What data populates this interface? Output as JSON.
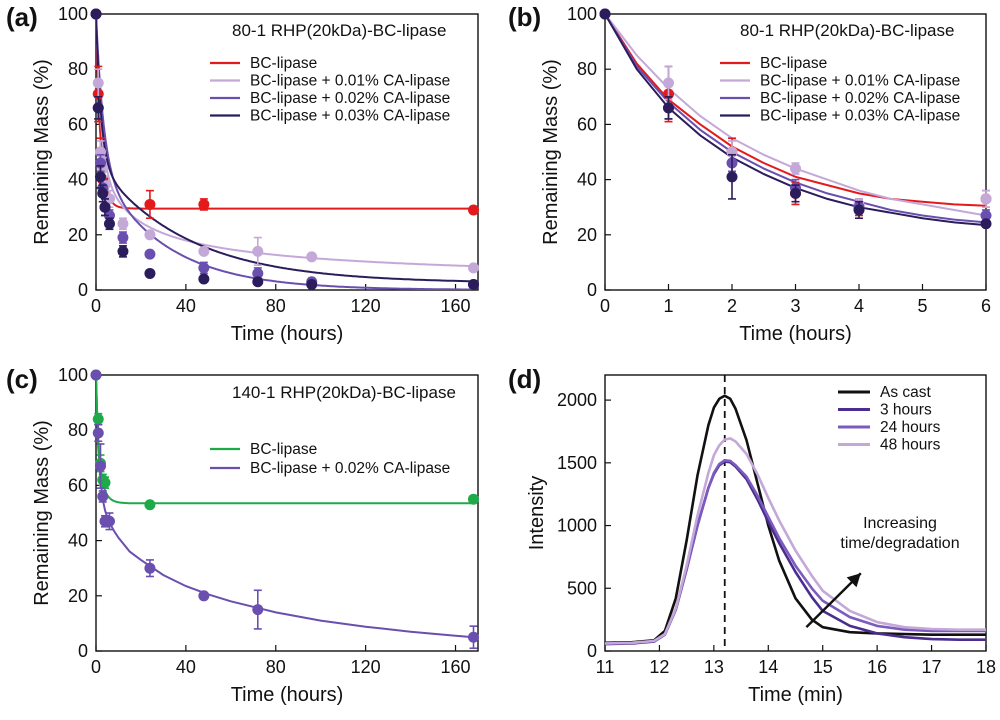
{
  "chart_data": [
    {
      "panel": "(a)",
      "type": "scatter",
      "title": "80-1 RHP(20kDa)-BC-lipase",
      "xlabel": "Time (hours)",
      "ylabel": "Remaining Mass (%)",
      "xlim": [
        0,
        170
      ],
      "ylim": [
        0,
        100
      ],
      "xticks": [
        0,
        40,
        80,
        120,
        160
      ],
      "yticks": [
        0,
        20,
        40,
        60,
        80,
        100
      ],
      "legend_position": "upper-right",
      "series": [
        {
          "name": "BC-lipase",
          "color": "#e31a1c",
          "x": [
            0,
            1,
            2,
            3,
            4,
            24,
            48,
            168
          ],
          "y": [
            100,
            71,
            50,
            40,
            35,
            31,
            31,
            29
          ],
          "err": [
            0,
            10,
            5,
            4,
            3,
            5,
            2,
            1
          ],
          "fit_k": 0.6,
          "fit_plateau": 29.5
        },
        {
          "name": "BC-lipase + 0.01% CA-lipase",
          "color": "#c4a8d8",
          "x": [
            0,
            1,
            2,
            3,
            4,
            6,
            12,
            24,
            48,
            72,
            96,
            168
          ],
          "y": [
            100,
            75,
            50,
            44,
            38,
            33,
            24,
            20,
            14,
            14,
            12,
            8
          ],
          "err": [
            0,
            5,
            4,
            4,
            3,
            3,
            2,
            1,
            1,
            5,
            1,
            1
          ],
          "fit_k": 0.45,
          "fit_plateau": 0
        },
        {
          "name": "BC-lipase + 0.02% CA-lipase",
          "color": "#6a4fb0",
          "x": [
            0,
            1,
            2,
            3,
            4,
            6,
            12,
            24,
            48,
            72,
            96,
            168
          ],
          "y": [
            100,
            66,
            46,
            37,
            30,
            27,
            19,
            13,
            8,
            6,
            3,
            2
          ],
          "err": [
            0,
            4,
            3,
            3,
            3,
            2,
            2,
            1,
            2,
            2,
            1,
            1
          ],
          "fit_k": 0.3,
          "fit_plateau": 0
        },
        {
          "name": "BC-lipase + 0.03% CA-lipase",
          "color": "#2b1d5c",
          "x": [
            0,
            1,
            2,
            3,
            4,
            6,
            12,
            24,
            48,
            72,
            96,
            168
          ],
          "y": [
            100,
            66,
            41,
            35,
            30,
            24,
            14,
            6,
            4,
            3,
            2,
            2
          ],
          "err": [
            0,
            4,
            4,
            3,
            3,
            2,
            2,
            1,
            1,
            1,
            1,
            1
          ],
          "fit_k": 0.45,
          "fit_plateau": 2.5
        }
      ]
    },
    {
      "panel": "(b)",
      "type": "scatter",
      "title": "80-1 RHP(20kDa)-BC-lipase",
      "xlabel": "Time (hours)",
      "ylabel": "Remaining Mass (%)",
      "xlim": [
        0,
        6
      ],
      "ylim": [
        0,
        100
      ],
      "xticks": [
        0,
        1,
        2,
        3,
        4,
        5,
        6
      ],
      "yticks": [
        0,
        20,
        40,
        60,
        80,
        100
      ],
      "legend_position": "upper-right",
      "series": [
        {
          "name": "BC-lipase",
          "color": "#e31a1c",
          "x": [
            0,
            1,
            2,
            3,
            4,
            6
          ],
          "y": [
            100,
            71,
            50,
            35,
            30,
            33
          ],
          "err": [
            0,
            10,
            5,
            4,
            3,
            3
          ]
        },
        {
          "name": "BC-lipase + 0.01% CA-lipase",
          "color": "#c4a8d8",
          "x": [
            0,
            1,
            2,
            3,
            4,
            6
          ],
          "y": [
            100,
            75,
            50,
            44,
            31,
            33
          ],
          "err": [
            0,
            6,
            4,
            2,
            2,
            3
          ]
        },
        {
          "name": "BC-lipase + 0.02% CA-lipase",
          "color": "#6a4fb0",
          "x": [
            0,
            1,
            2,
            3,
            4,
            6
          ],
          "y": [
            100,
            66,
            46,
            37,
            30,
            27
          ],
          "err": [
            0,
            4,
            3,
            3,
            2,
            2
          ]
        },
        {
          "name": "BC-lipase + 0.03% CA-lipase",
          "color": "#2b1d5c",
          "x": [
            0,
            1,
            2,
            3,
            4,
            6
          ],
          "y": [
            100,
            66,
            41,
            35,
            29,
            24
          ],
          "err": [
            0,
            4,
            8,
            3,
            3,
            1
          ]
        }
      ],
      "fit_curves": [
        {
          "color": "#e31a1c",
          "x": [
            0,
            0.5,
            1,
            1.5,
            2,
            2.5,
            3,
            3.5,
            4,
            4.5,
            5,
            5.5,
            6
          ],
          "y": [
            100,
            82,
            69,
            60,
            52,
            46,
            41,
            38,
            35,
            33,
            32,
            31,
            30.5
          ]
        },
        {
          "color": "#c4a8d8",
          "x": [
            0,
            0.5,
            1,
            1.5,
            2,
            2.5,
            3,
            3.5,
            4,
            4.5,
            5,
            5.5,
            6
          ],
          "y": [
            100,
            85,
            73,
            63,
            55,
            49,
            44,
            40,
            36,
            33,
            31,
            29,
            27
          ]
        },
        {
          "color": "#6a4fb0",
          "x": [
            0,
            0.5,
            1,
            1.5,
            2,
            2.5,
            3,
            3.5,
            4,
            4.5,
            5,
            5.5,
            6
          ],
          "y": [
            100,
            81,
            68,
            58,
            50,
            44,
            39,
            35,
            32,
            29,
            27,
            25.5,
            24.5
          ]
        },
        {
          "color": "#2b1d5c",
          "x": [
            0,
            0.5,
            1,
            1.5,
            2,
            2.5,
            3,
            3.5,
            4,
            4.5,
            5,
            5.5,
            6
          ],
          "y": [
            100,
            80,
            66,
            56,
            48,
            42,
            37,
            33,
            30,
            28,
            26,
            24.5,
            23.5
          ]
        }
      ]
    },
    {
      "panel": "(c)",
      "type": "scatter",
      "title": "140-1 RHP(20kDa)-BC-lipase",
      "xlabel": "Time (hours)",
      "ylabel": "Remaining Mass (%)",
      "xlim": [
        0,
        170
      ],
      "ylim": [
        0,
        100
      ],
      "xticks": [
        0,
        40,
        80,
        120,
        160
      ],
      "yticks": [
        0,
        20,
        40,
        60,
        80,
        100
      ],
      "legend_position": "upper-right",
      "series": [
        {
          "name": "BC-lipase",
          "color": "#1faa4a",
          "x": [
            0,
            1,
            2,
            3,
            4,
            24,
            168
          ],
          "y": [
            100,
            84,
            68,
            62,
            61,
            53,
            55
          ],
          "err": [
            0,
            2,
            3,
            2,
            2,
            1,
            1
          ],
          "fit_k": 1.0,
          "fit_plateau": 53.5
        },
        {
          "name": "BC-lipase + 0.02% CA-lipase",
          "color": "#6a4fb0",
          "x": [
            0,
            1,
            2,
            3,
            4,
            6,
            24,
            48,
            72,
            168
          ],
          "y": [
            100,
            79,
            67,
            56,
            47,
            47,
            30,
            20,
            15,
            5
          ],
          "err": [
            0,
            3,
            8,
            2,
            2,
            3,
            3,
            1,
            7,
            4
          ]
        }
      ],
      "fit_curves": [
        {
          "color": "#6a4fb0",
          "x": [
            0,
            1,
            2,
            3,
            4,
            5,
            6,
            8,
            10,
            15,
            20,
            30,
            40,
            50,
            60,
            80,
            100,
            120,
            140,
            160,
            168
          ],
          "y": [
            100,
            74,
            62,
            55,
            51,
            48.5,
            46.5,
            43.5,
            41,
            36,
            33,
            27.5,
            23.5,
            20.5,
            18,
            14,
            11,
            8.8,
            7,
            5.5,
            5
          ]
        }
      ]
    },
    {
      "panel": "(d)",
      "type": "line",
      "xlabel": "Time (min)",
      "ylabel": "Intensity",
      "xlim": [
        11,
        18
      ],
      "ylim": [
        0,
        2200
      ],
      "xticks": [
        11,
        12,
        13,
        14,
        15,
        16,
        17,
        18
      ],
      "yticks": [
        0,
        500,
        1000,
        1500,
        2000
      ],
      "legend_position": "upper-right",
      "dashed_vline_x": 13.2,
      "annotation": {
        "text": [
          "Increasing",
          "time/degradation"
        ],
        "arrow_from": [
          14.7,
          190
        ],
        "arrow_to": [
          15.7,
          620
        ]
      },
      "series": [
        {
          "name": "As cast",
          "color": "#111111",
          "x": [
            11,
            11.5,
            11.9,
            12.1,
            12.3,
            12.5,
            12.7,
            12.9,
            13.0,
            13.1,
            13.2,
            13.3,
            13.4,
            13.6,
            13.8,
            14.0,
            14.2,
            14.5,
            14.8,
            15.0,
            15.5,
            16.0,
            16.5,
            17.0,
            17.5,
            18.0
          ],
          "y": [
            65,
            70,
            85,
            160,
            420,
            880,
            1400,
            1800,
            1940,
            2010,
            2035,
            2010,
            1930,
            1680,
            1340,
            1000,
            720,
            420,
            250,
            190,
            150,
            140,
            135,
            130,
            130,
            130
          ]
        },
        {
          "name": "3 hours",
          "color": "#4a2d8f",
          "x": [
            11,
            11.5,
            11.9,
            12.1,
            12.3,
            12.5,
            12.7,
            12.9,
            13.0,
            13.1,
            13.2,
            13.3,
            13.4,
            13.6,
            13.8,
            14.0,
            14.2,
            14.5,
            14.8,
            15.0,
            15.5,
            16.0,
            16.5,
            17.0,
            17.5,
            18.0
          ],
          "y": [
            55,
            60,
            75,
            130,
            330,
            650,
            1000,
            1300,
            1410,
            1480,
            1510,
            1505,
            1470,
            1370,
            1210,
            1030,
            860,
            630,
            430,
            320,
            200,
            140,
            110,
            95,
            90,
            90
          ]
        },
        {
          "name": "24 hours",
          "color": "#7b5bbf",
          "x": [
            11,
            11.5,
            11.9,
            12.1,
            12.3,
            12.5,
            12.7,
            12.9,
            13.0,
            13.1,
            13.2,
            13.3,
            13.4,
            13.6,
            13.8,
            14.0,
            14.2,
            14.5,
            14.8,
            15.0,
            15.5,
            16.0,
            16.5,
            17.0,
            17.5,
            18.0
          ],
          "y": [
            60,
            65,
            80,
            135,
            330,
            650,
            1000,
            1300,
            1420,
            1490,
            1520,
            1515,
            1480,
            1390,
            1240,
            1070,
            900,
            680,
            500,
            400,
            270,
            200,
            170,
            160,
            160,
            160
          ]
        },
        {
          "name": "48 hours",
          "color": "#c4a8d8",
          "x": [
            11,
            11.5,
            11.9,
            12.1,
            12.3,
            12.5,
            12.7,
            12.9,
            13.0,
            13.1,
            13.2,
            13.3,
            13.4,
            13.6,
            13.8,
            14.0,
            14.2,
            14.5,
            14.8,
            15.0,
            15.5,
            16.0,
            16.5,
            17.0,
            17.5,
            18.0
          ],
          "y": [
            60,
            65,
            80,
            135,
            340,
            680,
            1080,
            1420,
            1560,
            1640,
            1685,
            1695,
            1670,
            1570,
            1410,
            1220,
            1040,
            800,
            600,
            480,
            320,
            230,
            190,
            175,
            170,
            170
          ]
        }
      ]
    }
  ]
}
